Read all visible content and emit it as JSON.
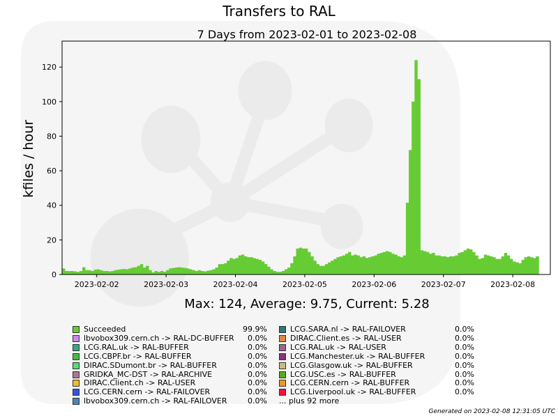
{
  "title": "Transfers to RAL",
  "footer": "Generated on 2023-02-08 12:31:05 UTC",
  "summary": "Max: 124, Average: 9.75, Current: 5.28",
  "legend": [
    {
      "label": "Succeeded",
      "pct": "99.9%",
      "color": "#66cc33"
    },
    {
      "label": "lbvobox309.cern.ch -> RAL-DC-BUFFER",
      "pct": "0.0%",
      "color": "#cc88ee"
    },
    {
      "label": "LCG.RAL.uk -> RAL-BUFFER",
      "pct": "0.0%",
      "color": "#33aa88"
    },
    {
      "label": "LCG.CBPF.br -> RAL-BUFFER",
      "pct": "0.0%",
      "color": "#44bb44"
    },
    {
      "label": "DIRAC.SDumont.br -> RAL-BUFFER",
      "pct": "0.0%",
      "color": "#55dd77"
    },
    {
      "label": "GRIDKA_MC-DST -> RAL-ARCHIVE",
      "pct": "0.0%",
      "color": "#aa7799"
    },
    {
      "label": "DIRAC.Client.ch -> RAL-USER",
      "pct": "0.0%",
      "color": "#eebb33"
    },
    {
      "label": "LCG.CERN.cern -> RAL-FAILOVER",
      "pct": "0.0%",
      "color": "#3355dd"
    },
    {
      "label": "lbvobox309.cern.ch -> RAL-FAILOVER",
      "pct": "0.0%",
      "color": "#4488bb"
    },
    {
      "label": "LCG.SARA.nl -> RAL-FAILOVER",
      "pct": "0.0%",
      "color": "#337777"
    },
    {
      "label": "DIRAC.Client.es -> RAL-USER",
      "pct": "0.0%",
      "color": "#dd8844"
    },
    {
      "label": "LCG.RAL.uk -> RAL-USER",
      "pct": "0.0%",
      "color": "#996688"
    },
    {
      "label": "LCG.Manchester.uk -> RAL-BUFFER",
      "pct": "0.0%",
      "color": "#883377"
    },
    {
      "label": "LCG.Glasgow.uk -> RAL-BUFFER",
      "pct": "0.0%",
      "color": "#ccbb88"
    },
    {
      "label": "LCG.USC.es -> RAL-BUFFER",
      "pct": "0.0%",
      "color": "#55aa22"
    },
    {
      "label": "LCG.CERN.cern -> RAL-BUFFER",
      "pct": "0.0%",
      "color": "#ee9922"
    },
    {
      "label": "LCG.Liverpool.uk -> RAL-BUFFER",
      "pct": "0.0%",
      "color": "#ee1144"
    }
  ],
  "legend_more": "... plus 92 more",
  "chart_data": {
    "type": "bar",
    "title": "7 Days from 2023-02-01 to 2023-02-08",
    "ylabel": "kfiles / hour",
    "xlabel": "",
    "ylim": [
      0,
      135
    ],
    "yticks": [
      0,
      20,
      40,
      60,
      80,
      100,
      120
    ],
    "xlim": [
      "2023-02-01T12:00",
      "2023-02-08T13:00"
    ],
    "xticks": [
      "2023-02-02",
      "2023-02-03",
      "2023-02-04",
      "2023-02-05",
      "2023-02-06",
      "2023-02-07",
      "2023-02-08"
    ],
    "grid": false,
    "series": [
      {
        "name": "Succeeded",
        "color": "#66cc33",
        "x_start": "2023-02-01T12:00",
        "interval_hours": 1,
        "values": [
          3.5,
          2,
          2,
          2,
          1.8,
          1.5,
          2,
          4.2,
          2.5,
          2.5,
          2,
          2.8,
          3,
          2.5,
          2,
          2,
          1.8,
          2,
          2.5,
          2.8,
          3,
          3.2,
          3,
          3.5,
          4,
          4.2,
          5,
          6,
          4,
          5,
          2.5,
          1.2,
          2,
          1.5,
          2,
          1.5,
          2.5,
          3.5,
          3.8,
          4,
          4.2,
          4,
          3.8,
          3.5,
          3,
          2.5,
          2,
          2.5,
          2,
          1.8,
          2.2,
          2.5,
          3,
          4,
          6,
          6,
          6.5,
          8,
          9.5,
          9,
          9.5,
          11,
          11.5,
          10.5,
          10,
          10,
          9.5,
          9,
          8.5,
          7.5,
          6,
          4.5,
          3,
          2,
          1.5,
          1.5,
          2,
          3,
          4,
          6.5,
          10.5,
          15,
          15.5,
          15,
          15,
          13,
          10.5,
          8,
          6,
          5,
          5,
          6,
          7,
          8,
          9,
          10,
          10.5,
          11,
          12,
          13,
          11,
          11.5,
          11,
          10,
          10.5,
          9.5,
          10,
          10.5,
          11,
          12,
          12.5,
          13,
          13.5,
          13,
          12,
          11.5,
          10.5,
          10,
          11,
          41.5,
          72,
          100,
          124,
          113,
          14,
          13.5,
          13,
          12,
          12.5,
          11,
          11,
          10.5,
          10.5,
          10,
          10.5,
          10.5,
          11,
          12.5,
          13,
          14,
          15,
          14.5,
          13,
          11,
          9,
          9.5,
          11.5,
          11,
          10.5,
          10,
          9,
          9,
          10.5,
          12.5,
          11,
          9,
          7.5,
          7,
          6.5,
          8.5,
          10,
          10.5,
          10,
          9.5,
          10.5
        ]
      }
    ]
  }
}
